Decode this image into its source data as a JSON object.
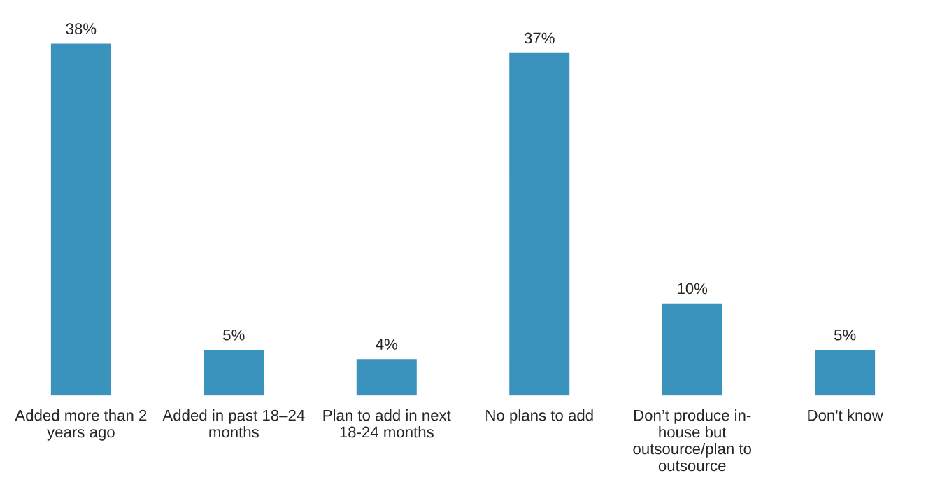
{
  "chart_data": {
    "type": "bar",
    "categories": [
      "Added more than 2\nyears ago",
      "Added in past 18–24\nmonths",
      "Plan to add in next\n18-24 months",
      "No plans to add",
      "Don’t produce in-\nhouse but\noutsource/plan to\noutsource",
      "Don't know"
    ],
    "values": [
      38,
      5,
      4,
      37,
      10,
      5
    ],
    "value_labels": [
      "38%",
      "5%",
      "4%",
      "37%",
      "10%",
      "5%"
    ],
    "color": "#3a93bd",
    "grid": false,
    "legend": false
  }
}
